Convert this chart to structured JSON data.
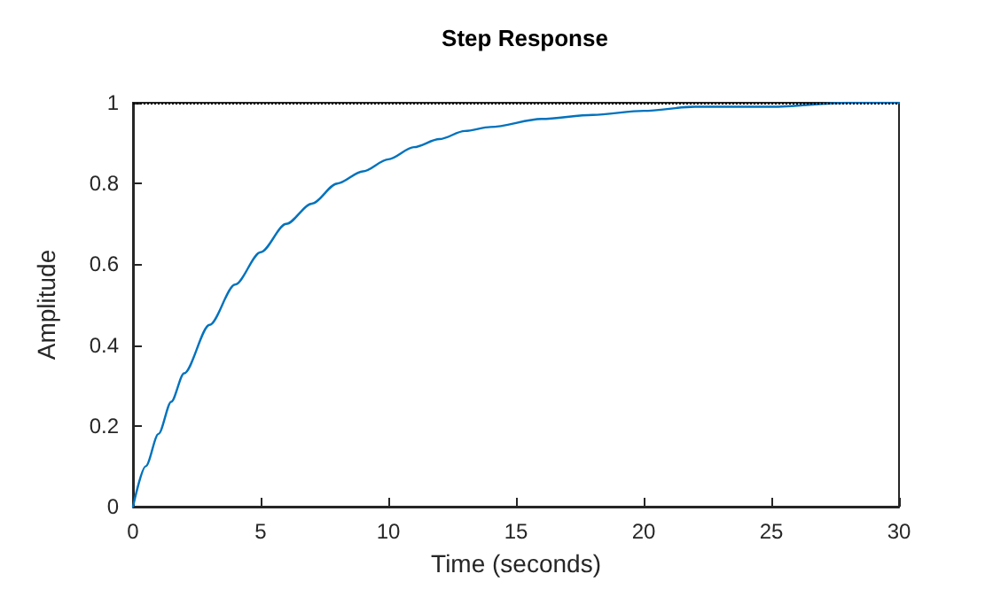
{
  "chart_data": {
    "type": "line",
    "title": "Step Response",
    "xlabel": "Time (seconds)",
    "ylabel": "Amplitude",
    "x": [
      0,
      0.5,
      1,
      1.5,
      2,
      3,
      4,
      5,
      6,
      7,
      8,
      9,
      10,
      11,
      12,
      13,
      14,
      16,
      18,
      20,
      22,
      25,
      28,
      30
    ],
    "series": [
      {
        "color": "#0072bd",
        "values": [
          0,
          0.1,
          0.18,
          0.26,
          0.33,
          0.45,
          0.55,
          0.63,
          0.7,
          0.75,
          0.8,
          0.83,
          0.86,
          0.89,
          0.91,
          0.93,
          0.94,
          0.96,
          0.97,
          0.98,
          0.99,
          0.99,
          1,
          1
        ]
      }
    ],
    "xlim": [
      0,
      30
    ],
    "xticks": [
      0,
      5,
      10,
      15,
      20,
      25,
      30
    ],
    "ylim": [
      0,
      1
    ],
    "yticks": [
      0,
      0.2,
      0.4,
      0.6,
      0.8,
      1
    ],
    "ref_lines": [
      {
        "axis": "y",
        "value": 1,
        "color": "#000000",
        "line_style": "dotted"
      }
    ],
    "grid": false,
    "marker": "none",
    "line_style": "solid"
  }
}
